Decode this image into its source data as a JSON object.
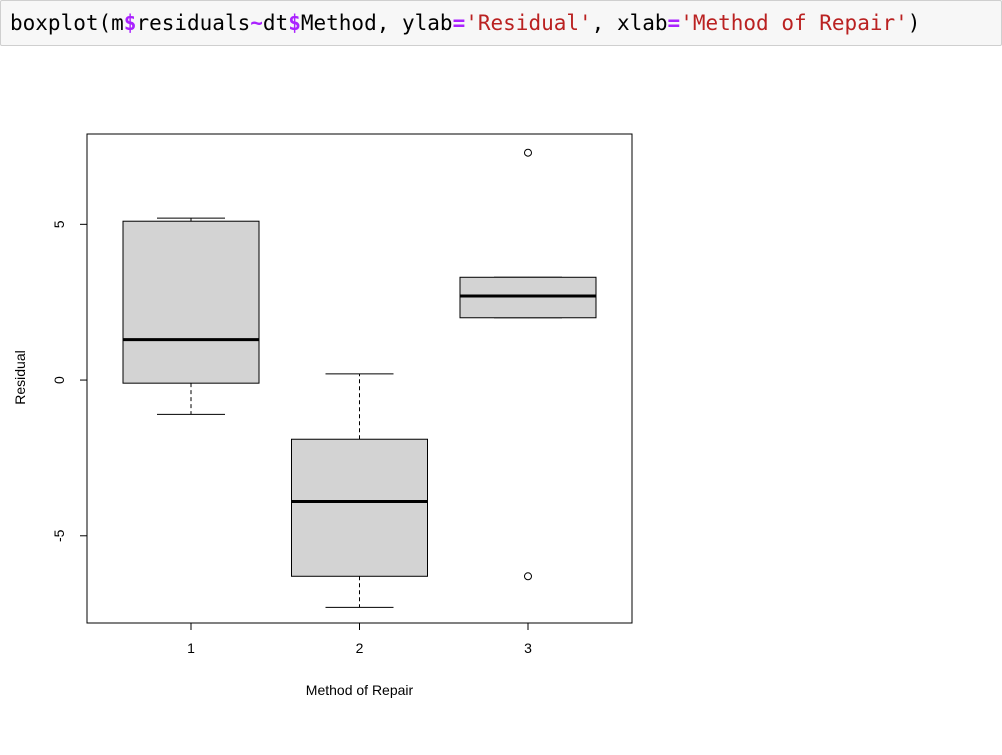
{
  "code_cell": {
    "tokens": [
      {
        "text": "boxplot(m",
        "kind": "plain"
      },
      {
        "text": "$",
        "kind": "op"
      },
      {
        "text": "residuals",
        "kind": "plain"
      },
      {
        "text": "~",
        "kind": "op"
      },
      {
        "text": "dt",
        "kind": "plain"
      },
      {
        "text": "$",
        "kind": "op"
      },
      {
        "text": "Method, ylab",
        "kind": "plain"
      },
      {
        "text": "=",
        "kind": "op"
      },
      {
        "text": "'Residual'",
        "kind": "str"
      },
      {
        "text": ", xlab",
        "kind": "plain"
      },
      {
        "text": "=",
        "kind": "op"
      },
      {
        "text": "'Method of Repair'",
        "kind": "str"
      },
      {
        "text": ")",
        "kind": "plain"
      }
    ]
  },
  "colors": {
    "box_fill": "#d3d3d3",
    "stroke": "#000000",
    "code_operator": "#aa22ff",
    "code_string": "#ba2121"
  },
  "chart_data": {
    "type": "boxplot",
    "title": "",
    "xlabel": "Method of Repair",
    "ylabel": "Residual",
    "ylim": [
      -7.8,
      7.9
    ],
    "yticks": [
      -5,
      0,
      5
    ],
    "ytick_labels": [
      "-5",
      "0",
      "5"
    ],
    "categories": [
      "1",
      "2",
      "3"
    ],
    "boxes": [
      {
        "category": "1",
        "whisker_low": -1.1,
        "q1": -0.1,
        "median": 1.3,
        "q3": 5.1,
        "whisker_high": 5.2,
        "outliers": []
      },
      {
        "category": "2",
        "whisker_low": -7.3,
        "q1": -6.3,
        "median": -3.9,
        "q3": -1.9,
        "whisker_high": 0.2,
        "outliers": []
      },
      {
        "category": "3",
        "whisker_low": 2.0,
        "q1": 2.0,
        "median": 2.7,
        "q3": 3.3,
        "whisker_high": 3.3,
        "outliers": [
          7.3,
          -6.3
        ]
      }
    ],
    "grid": false,
    "legend": "none"
  }
}
